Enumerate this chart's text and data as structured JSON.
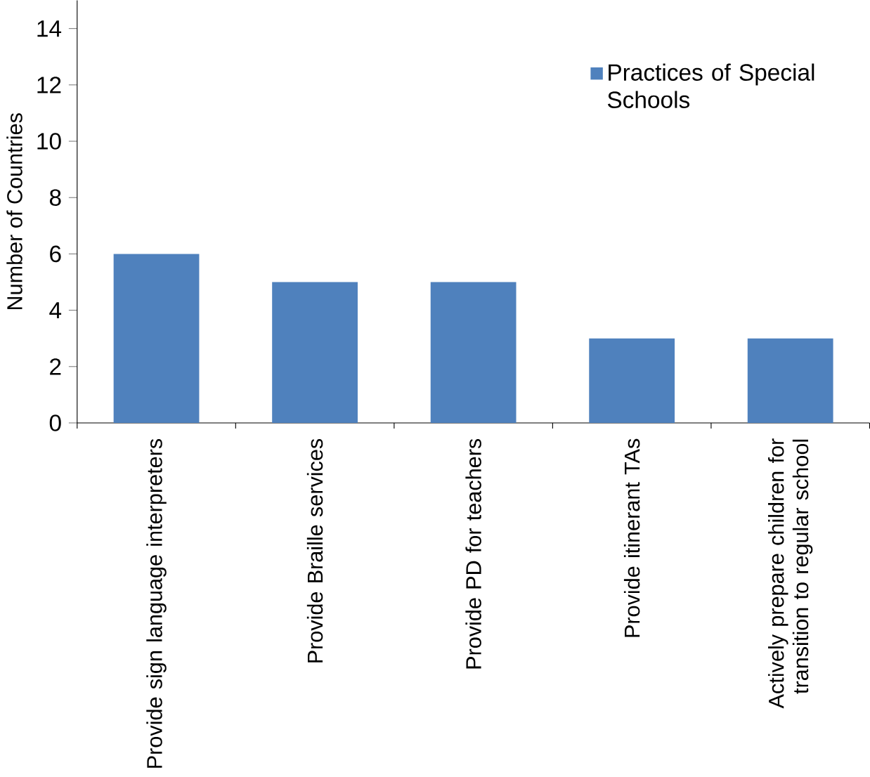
{
  "chart_data": {
    "type": "bar",
    "ylabel": "Number of Countries",
    "categories": [
      "Provide sign language interpreters",
      "Provide Braille services",
      "Provide PD for teachers",
      "Provide itinerant TAs",
      "Actively prepare children for transition to regular school"
    ],
    "series": [
      {
        "name": "Practices of Special Schools",
        "color": "#4f81bd",
        "values": [
          6,
          5,
          5,
          3,
          3
        ]
      }
    ],
    "ylim": [
      0,
      15
    ],
    "yticks": [
      0,
      2,
      4,
      6,
      8,
      10,
      12,
      14
    ],
    "grid": false,
    "legend": "top right"
  }
}
